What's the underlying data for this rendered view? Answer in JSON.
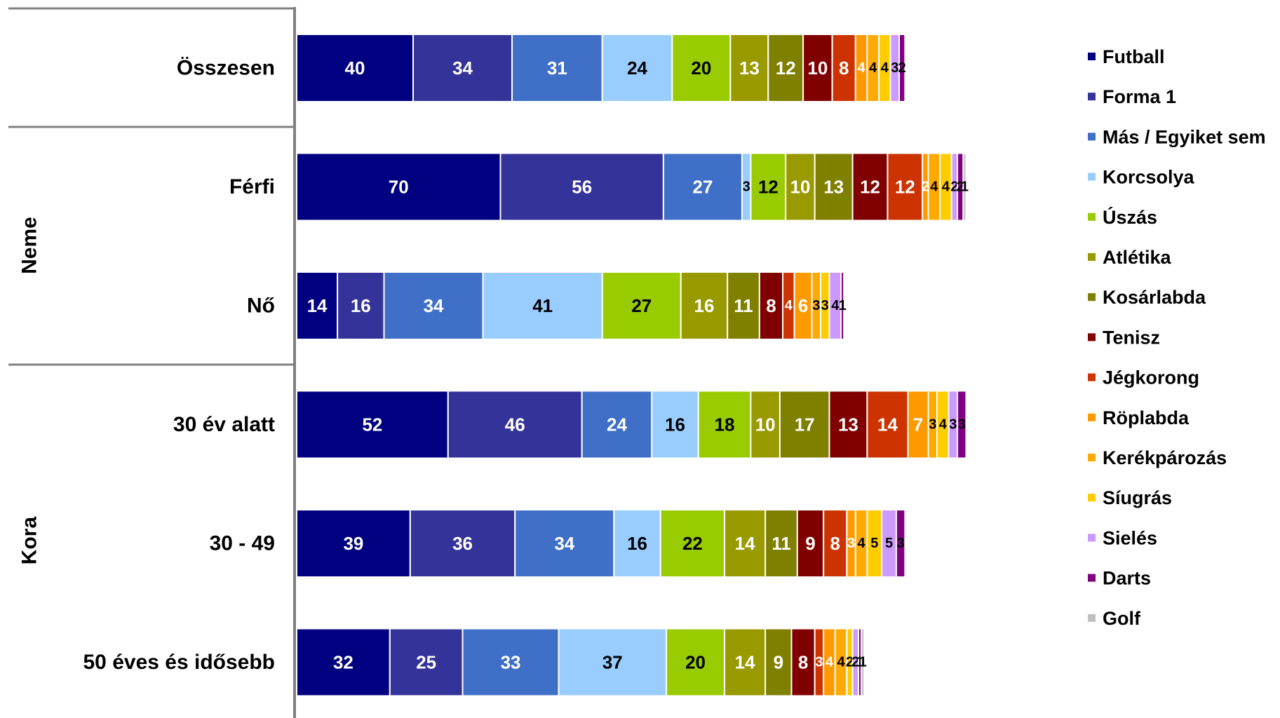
{
  "chart_data": {
    "type": "bar",
    "orientation": "horizontal",
    "stacked": true,
    "title": "",
    "xlabel": "",
    "ylabel": "",
    "xlim": [
      0,
      220
    ],
    "grid": false,
    "legend_position": "right",
    "groups": [
      {
        "name": "",
        "categories": [
          "Összesen"
        ]
      },
      {
        "name": "Neme",
        "categories": [
          "Férfi",
          "Nő"
        ]
      },
      {
        "name": "Kora",
        "categories": [
          "30 év alatt",
          "30 - 49",
          "50 éves és idősebb"
        ]
      }
    ],
    "categories": [
      "Összesen",
      "Férfi",
      "Nő",
      "30 év alatt",
      "30 - 49",
      "50 éves és idősebb"
    ],
    "series": [
      {
        "name": "Futball",
        "color": "#000080",
        "label_color": "#ffffff",
        "values": [
          40,
          70,
          14,
          52,
          39,
          32
        ]
      },
      {
        "name": "Forma 1",
        "color": "#333399",
        "label_color": "#ffffff",
        "values": [
          34,
          56,
          16,
          46,
          36,
          25
        ]
      },
      {
        "name": "Más / Egyiket sem",
        "color": "#3f6fc6",
        "label_color": "#ffffff",
        "values": [
          31,
          27,
          34,
          24,
          34,
          33
        ]
      },
      {
        "name": "Korcsolya",
        "color": "#99ccff",
        "label_color": "#000000",
        "values": [
          24,
          3,
          41,
          16,
          16,
          37
        ]
      },
      {
        "name": "Úszás",
        "color": "#99cc00",
        "label_color": "#000000",
        "values": [
          20,
          12,
          27,
          18,
          22,
          20
        ]
      },
      {
        "name": "Atlétika",
        "color": "#999900",
        "label_color": "#ffffff",
        "values": [
          13,
          10,
          16,
          10,
          14,
          14
        ]
      },
      {
        "name": "Kosárlabda",
        "color": "#7f7f00",
        "label_color": "#ffffff",
        "values": [
          12,
          13,
          11,
          17,
          11,
          9
        ]
      },
      {
        "name": "Tenisz",
        "color": "#800000",
        "label_color": "#ffffff",
        "values": [
          10,
          12,
          8,
          13,
          9,
          8
        ]
      },
      {
        "name": "Jégkorong",
        "color": "#cc3300",
        "label_color": "#ffffff",
        "values": [
          8,
          12,
          4,
          14,
          8,
          3
        ]
      },
      {
        "name": "Röplabda",
        "color": "#ff9900",
        "label_color": "#ffffff",
        "values": [
          4,
          2,
          6,
          7,
          3,
          4
        ]
      },
      {
        "name": "Kerékpározás",
        "color": "#ffaa00",
        "label_color": "#000000",
        "values": [
          4,
          4,
          3,
          3,
          4,
          4
        ]
      },
      {
        "name": "Síugrás",
        "color": "#ffcc00",
        "label_color": "#000000",
        "values": [
          4,
          4,
          3,
          4,
          5,
          2
        ]
      },
      {
        "name": "Sielés",
        "color": "#cc99ff",
        "label_color": "#000000",
        "values": [
          3,
          2,
          4,
          3,
          5,
          2
        ]
      },
      {
        "name": "Darts",
        "color": "#800080",
        "label_color": "#000000",
        "values": [
          2,
          2,
          1,
          3,
          3,
          1
        ]
      },
      {
        "name": "Golf",
        "color": "#c0c0c0",
        "label_color": "#000000",
        "values": [
          0,
          1,
          0,
          0,
          0,
          1
        ]
      }
    ]
  }
}
